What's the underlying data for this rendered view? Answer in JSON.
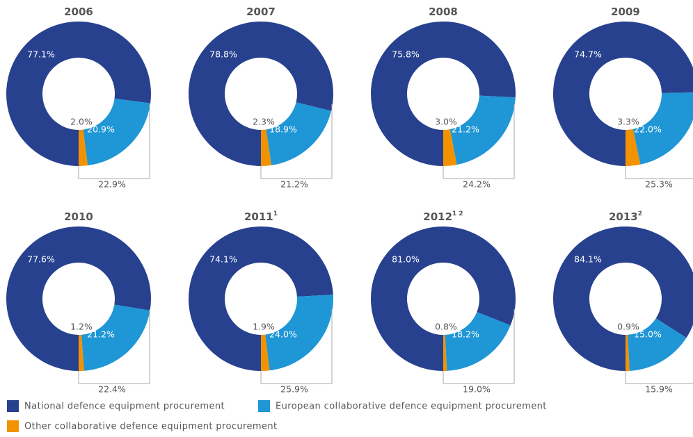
{
  "legend": {
    "categories": [
      "National defence equipment procurement",
      "European collaborative defence equipment procurement",
      "Other collaborative defence equipment procurement"
    ],
    "colors": [
      "#27418f",
      "#1f96d6",
      "#f39200"
    ]
  },
  "chart_data": [
    {
      "type": "donut",
      "title": "2006",
      "values": [
        77.1,
        20.9,
        2.0
      ],
      "value_labels": [
        "77.1%",
        "20.9%",
        "2.0%"
      ],
      "annotation": "22.9%"
    },
    {
      "type": "donut",
      "title": "2007",
      "values": [
        78.8,
        18.9,
        2.3
      ],
      "value_labels": [
        "78.8%",
        "18.9%",
        "2.3%"
      ],
      "annotation": "21.2%"
    },
    {
      "type": "donut",
      "title": "2008",
      "values": [
        75.8,
        21.2,
        3.0
      ],
      "value_labels": [
        "75.8%",
        "21.2%",
        "3.0%"
      ],
      "annotation": "24.2%"
    },
    {
      "type": "donut",
      "title": "2009",
      "values": [
        74.7,
        22.0,
        3.3
      ],
      "value_labels": [
        "74.7%",
        "22.0%",
        "3.3%"
      ],
      "annotation": "25.3%"
    },
    {
      "type": "donut",
      "title": "2010",
      "values": [
        77.6,
        21.2,
        1.2
      ],
      "value_labels": [
        "77.6%",
        "21.2%",
        "1.2%"
      ],
      "annotation": "22.4%"
    },
    {
      "type": "donut",
      "title": "2011",
      "superscript": "1",
      "values": [
        74.1,
        24.0,
        1.9
      ],
      "value_labels": [
        "74.1%",
        "24.0%",
        "1.9%"
      ],
      "annotation": "25.9%"
    },
    {
      "type": "donut",
      "title": "2012",
      "superscript": "1 2",
      "values": [
        81.0,
        18.2,
        0.8
      ],
      "value_labels": [
        "81.0%",
        "18.2%",
        "0.8%"
      ],
      "annotation": "19.0%"
    },
    {
      "type": "donut",
      "title": "2013",
      "superscript": "2",
      "values": [
        84.1,
        15.0,
        0.9
      ],
      "value_labels": [
        "84.1%",
        "15.0%",
        "0.9%"
      ],
      "annotation": "15.9%"
    }
  ]
}
